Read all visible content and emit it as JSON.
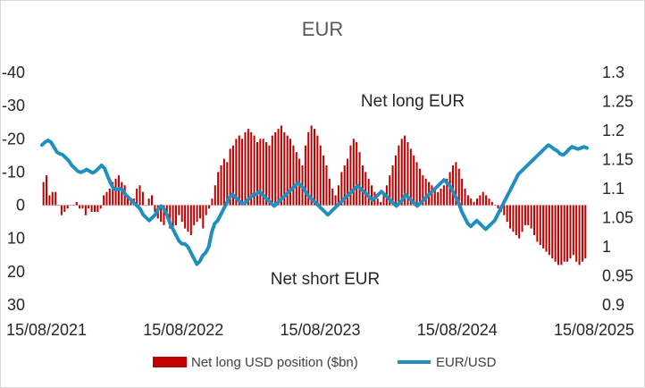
{
  "chart_data": {
    "type": "bar+line",
    "title": "EUR",
    "x_ticks": [
      "15/08/2021",
      "15/08/2022",
      "15/08/2023",
      "15/08/2024",
      "15/08/2025"
    ],
    "left_axis": {
      "ticks": [
        "-40",
        "-30",
        "-20",
        "-10",
        "0",
        "10",
        "20",
        "30"
      ],
      "ylim": [
        -40,
        30
      ],
      "inverted": true
    },
    "right_axis": {
      "ticks": [
        "1.3",
        "1.25",
        "1.2",
        "1.15",
        "1.1",
        "1.05",
        "1",
        "0.95",
        "0.9"
      ],
      "ylim": [
        0.9,
        1.3
      ]
    },
    "annotations": [
      "Net long EUR",
      "Net short EUR"
    ],
    "grid": false,
    "legend_position": "bottom",
    "colors": {
      "bars": "#c00000",
      "line": "#1f8fbf"
    },
    "series": [
      {
        "name": "Net long USD position ($bn)",
        "kind": "bar",
        "axis": "left",
        "values": [
          -7,
          -9,
          -3,
          -4,
          -4,
          0,
          3,
          2,
          1,
          0,
          0,
          -1,
          1,
          1,
          3,
          1,
          2,
          2,
          2,
          1,
          -3,
          -4,
          -5,
          -7,
          -8,
          -9,
          -7,
          -6,
          -3,
          -1,
          -2,
          -5,
          -6,
          -4,
          0,
          -2,
          -3,
          2,
          4,
          5,
          6,
          4,
          7,
          8,
          6,
          3,
          5,
          7,
          8,
          9,
          6,
          5,
          4,
          7,
          3,
          1,
          -2,
          -6,
          -10,
          -12,
          -14,
          -13,
          -17,
          -18,
          -20,
          -21,
          -20,
          -22,
          -23,
          -22,
          -21,
          -19,
          -20,
          -20,
          -19,
          -18,
          -21,
          -22,
          -23,
          -24,
          -22,
          -21,
          -20,
          -18,
          -16,
          -14,
          -12,
          -18,
          -22,
          -24,
          -23,
          -21,
          -18,
          -15,
          -12,
          -8,
          -5,
          -3,
          -6,
          -10,
          -12,
          -14,
          -18,
          -20,
          -19,
          -16,
          -12,
          -10,
          -8,
          -6,
          -4,
          -2,
          -1,
          -3,
          -6,
          -9,
          -12,
          -15,
          -18,
          -20,
          -21,
          -19,
          -17,
          -15,
          -13,
          -11,
          -9,
          -8,
          -7,
          -6,
          -5,
          -4,
          -5,
          -6,
          -8,
          -10,
          -12,
          -13,
          -11,
          -8,
          -5,
          -3,
          -2,
          -1,
          -2,
          -3,
          -4,
          -3,
          -2,
          -1,
          0,
          1,
          2,
          3,
          5,
          7,
          8,
          9,
          10,
          8,
          6,
          6,
          7,
          9,
          11,
          12,
          13,
          14,
          15,
          16,
          17,
          18,
          18,
          17,
          17,
          16,
          15,
          17,
          18,
          17,
          16
        ]
      },
      {
        "name": "EUR/USD",
        "kind": "line",
        "axis": "right",
        "values": [
          1.175,
          1.18,
          1.183,
          1.18,
          1.172,
          1.163,
          1.16,
          1.158,
          1.153,
          1.148,
          1.14,
          1.135,
          1.13,
          1.128,
          1.13,
          1.133,
          1.13,
          1.127,
          1.13,
          1.135,
          1.14,
          1.135,
          1.122,
          1.11,
          1.1,
          1.098,
          1.1,
          1.098,
          1.09,
          1.085,
          1.08,
          1.075,
          1.07,
          1.065,
          1.055,
          1.05,
          1.045,
          1.05,
          1.055,
          1.065,
          1.07,
          1.065,
          1.055,
          1.04,
          1.03,
          1.02,
          1.01,
          1.005,
          1.005,
          1.0,
          0.99,
          0.98,
          0.97,
          0.975,
          0.985,
          0.99,
          1.0,
          1.025,
          1.04,
          1.045,
          1.055,
          1.065,
          1.075,
          1.085,
          1.09,
          1.085,
          1.08,
          1.075,
          1.075,
          1.08,
          1.085,
          1.09,
          1.09,
          1.095,
          1.09,
          1.085,
          1.08,
          1.075,
          1.07,
          1.075,
          1.08,
          1.085,
          1.09,
          1.095,
          1.1,
          1.105,
          1.11,
          1.105,
          1.1,
          1.09,
          1.085,
          1.08,
          1.075,
          1.07,
          1.065,
          1.06,
          1.055,
          1.06,
          1.065,
          1.07,
          1.075,
          1.08,
          1.085,
          1.09,
          1.095,
          1.1,
          1.105,
          1.1,
          1.095,
          1.09,
          1.085,
          1.08,
          1.085,
          1.09,
          1.095,
          1.09,
          1.085,
          1.08,
          1.075,
          1.07,
          1.075,
          1.08,
          1.09,
          1.085,
          1.08,
          1.075,
          1.07,
          1.075,
          1.08,
          1.085,
          1.09,
          1.095,
          1.1,
          1.105,
          1.11,
          1.115,
          1.11,
          1.105,
          1.095,
          1.085,
          1.075,
          1.06,
          1.05,
          1.04,
          1.035,
          1.04,
          1.045,
          1.04,
          1.035,
          1.03,
          1.035,
          1.04,
          1.045,
          1.055,
          1.065,
          1.075,
          1.085,
          1.095,
          1.105,
          1.115,
          1.125,
          1.13,
          1.135,
          1.14,
          1.145,
          1.15,
          1.155,
          1.16,
          1.165,
          1.17,
          1.175,
          1.172,
          1.168,
          1.165,
          1.16,
          1.158,
          1.162,
          1.168,
          1.172,
          1.17,
          1.168,
          1.17,
          1.172,
          1.17
        ]
      }
    ]
  }
}
